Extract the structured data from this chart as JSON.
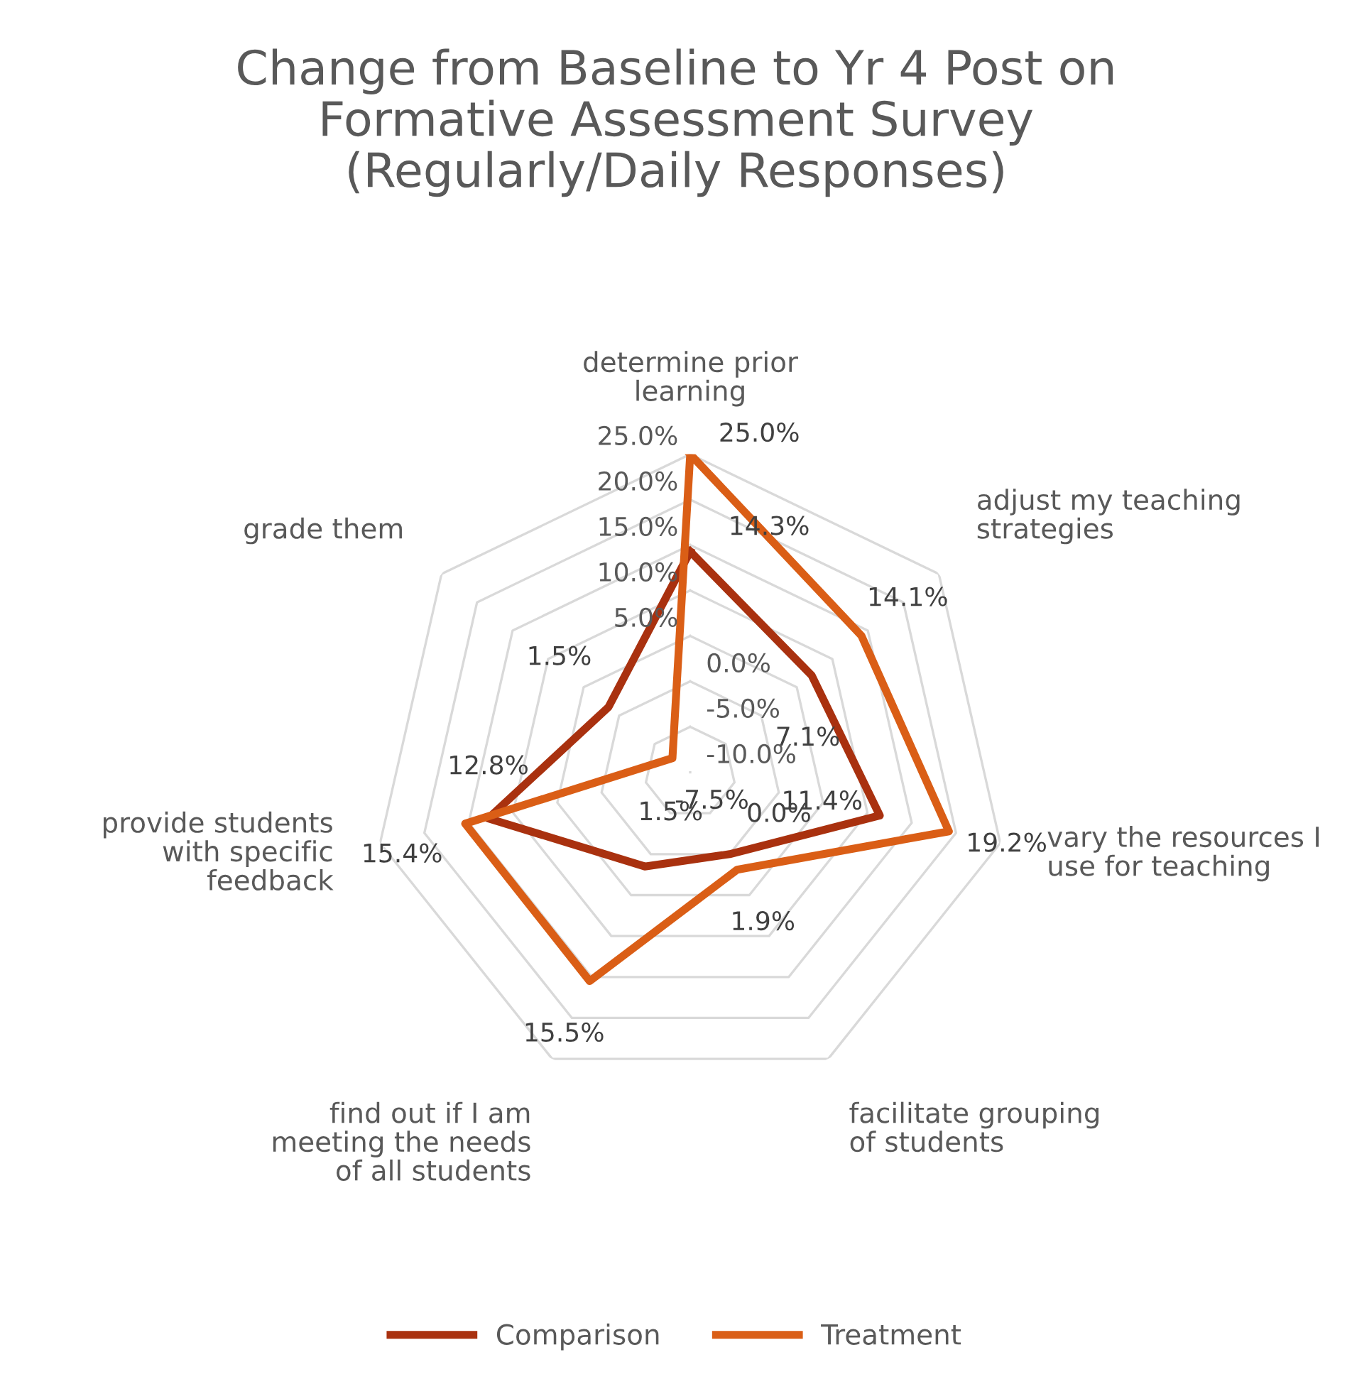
{
  "chart_data": {
    "type": "radar",
    "title": "Change from Baseline to Yr 4 Post on\nFormative Assessment Survey\n(Regularly/Daily Responses)",
    "categories": [
      "determine prior\nlearning",
      "adjust my teaching\nstrategies",
      "vary the resources I\nuse for teaching",
      "facilitate grouping\nof students",
      "find out if I am\nmeeting the needs\nof all students",
      "provide students\nwith specific\nfeedback",
      "grade them"
    ],
    "series": [
      {
        "name": "Comparison",
        "color": "#a9310f",
        "values": [
          14.3,
          7.1,
          11.4,
          0.0,
          1.5,
          12.8,
          1.5
        ],
        "value_labels": [
          "14.3%",
          "7.1%",
          "11.4%",
          "0.0%",
          "1.5%",
          "12.8%",
          "1.5%"
        ]
      },
      {
        "name": "Treatment",
        "color": "#da5e16",
        "values": [
          25.0,
          14.1,
          19.2,
          1.9,
          15.5,
          15.4,
          -7.5
        ],
        "value_labels": [
          "25.0%",
          "14.1%",
          "19.2%",
          "1.9%",
          "15.5%",
          "15.4%",
          "-7.5%"
        ]
      }
    ],
    "ylim": [
      -10,
      25
    ],
    "yticks": [
      {
        "value": -10,
        "label": "-10.0%"
      },
      {
        "value": -5,
        "label": "-5.0%"
      },
      {
        "value": 0,
        "label": "0.0%"
      },
      {
        "value": 5,
        "label": "5.0%"
      },
      {
        "value": 10,
        "label": "10.0%"
      },
      {
        "value": 15,
        "label": "15.0%"
      },
      {
        "value": 20,
        "label": "20.0%"
      },
      {
        "value": 25,
        "label": "25.0%"
      }
    ],
    "grid": true,
    "legend": "bottom",
    "marker": "none",
    "line_style": "solid"
  }
}
